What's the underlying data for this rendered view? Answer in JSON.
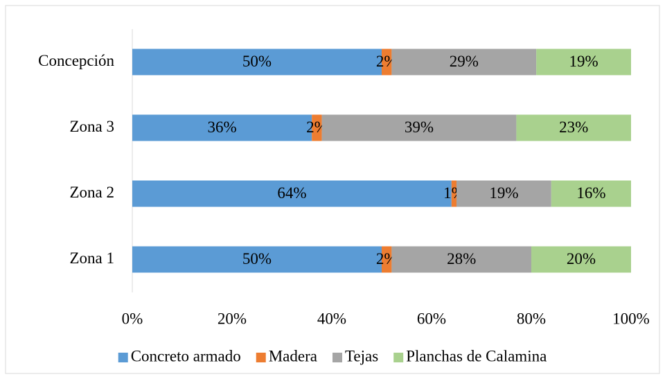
{
  "chart_data": {
    "type": "stacked_bar_horizontal",
    "categories": [
      "Zona 1",
      "Zona 2",
      "Zona 3",
      "Concepción"
    ],
    "series": [
      {
        "name": "Concreto armado",
        "color": "#5b9bd5",
        "values": [
          50,
          64,
          36,
          50
        ],
        "value_labels": [
          "50%",
          "64%",
          "36%",
          "50%"
        ]
      },
      {
        "name": "Madera",
        "color": "#ed7d31",
        "values": [
          2,
          1,
          2,
          2
        ],
        "value_labels": [
          "2%",
          "1%",
          "2%",
          "2%"
        ]
      },
      {
        "name": "Tejas",
        "color": "#a5a5a5",
        "values": [
          28,
          19,
          39,
          29
        ],
        "value_labels": [
          "28%",
          "19%",
          "39%",
          "29%"
        ]
      },
      {
        "name": "Planchas de Calamina",
        "color": "#a9d18e",
        "values": [
          20,
          16,
          23,
          19
        ],
        "value_labels": [
          "20%",
          "16%",
          "23%",
          "19%"
        ]
      }
    ],
    "xlim": [
      0,
      100
    ],
    "xticks": [
      {
        "value": 0,
        "label": "0%"
      },
      {
        "value": 20,
        "label": "20%"
      },
      {
        "value": 40,
        "label": "40%"
      },
      {
        "value": 60,
        "label": "60%"
      },
      {
        "value": 80,
        "label": "80%"
      },
      {
        "value": 100,
        "label": "100%"
      }
    ],
    "legend": "bottom"
  }
}
